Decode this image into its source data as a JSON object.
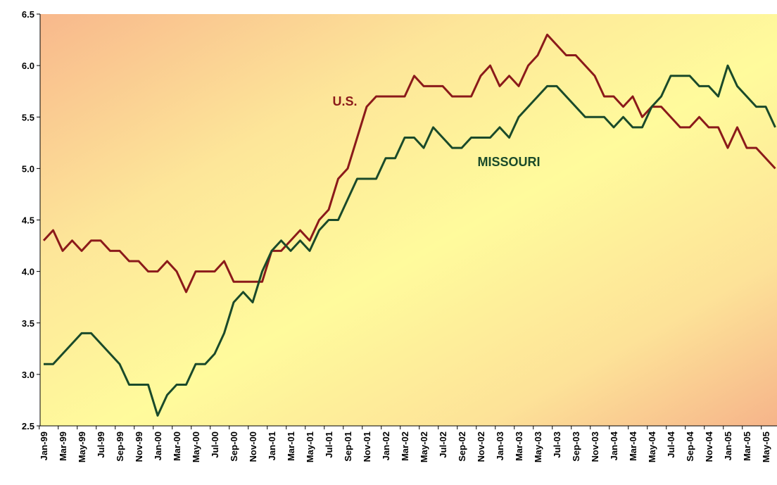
{
  "chart_data": {
    "type": "line",
    "categories": [
      "Jan-99",
      null,
      "Mar-99",
      null,
      "May-99",
      null,
      "Jul-99",
      null,
      "Sep-99",
      null,
      "Nov-99",
      null,
      "Jan-00",
      null,
      "Mar-00",
      null,
      "May-00",
      null,
      "Jul-00",
      null,
      "Sep-00",
      null,
      "Nov-00",
      null,
      "Jan-01",
      null,
      "Mar-01",
      null,
      "May-01",
      null,
      "Jul-01",
      null,
      "Sep-01",
      null,
      "Nov-01",
      null,
      "Jan-02",
      null,
      "Mar-02",
      null,
      "May-02",
      null,
      "Jul-02",
      null,
      "Sep-02",
      null,
      "Nov-02",
      null,
      "Jan-03",
      null,
      "Mar-03",
      null,
      "May-03",
      null,
      "Jul-03",
      null,
      "Sep-03",
      null,
      "Nov-03",
      null,
      "Jan-04",
      null,
      "Mar-04",
      null,
      "May-04",
      null,
      "Jul-04",
      null,
      "Sep-04",
      null,
      "Nov-04",
      null,
      "Jan-05",
      null,
      "Mar-05",
      null,
      "May-05",
      null
    ],
    "series": [
      {
        "name": "U.S.",
        "color": "#8b1a1a",
        "values": [
          4.3,
          4.4,
          4.2,
          4.3,
          4.2,
          4.3,
          4.3,
          4.2,
          4.2,
          4.1,
          4.1,
          4.0,
          4.0,
          4.1,
          4.0,
          3.8,
          4.0,
          4.0,
          4.0,
          4.1,
          3.9,
          3.9,
          3.9,
          3.9,
          4.2,
          4.2,
          4.3,
          4.4,
          4.3,
          4.5,
          4.6,
          4.9,
          5.0,
          5.3,
          5.6,
          5.7,
          5.7,
          5.7,
          5.7,
          5.9,
          5.8,
          5.8,
          5.8,
          5.7,
          5.7,
          5.7,
          5.9,
          6.0,
          5.8,
          5.9,
          5.8,
          6.0,
          6.1,
          6.3,
          6.2,
          6.1,
          6.1,
          6.0,
          5.9,
          5.7,
          5.7,
          5.6,
          5.7,
          5.5,
          5.6,
          5.6,
          5.5,
          5.4,
          5.4,
          5.5,
          5.4,
          5.4,
          5.2,
          5.4,
          5.2,
          5.2,
          5.1,
          5.0
        ]
      },
      {
        "name": "MISSOURI",
        "color": "#1a4a2a",
        "values": [
          3.1,
          3.1,
          3.2,
          3.3,
          3.4,
          3.4,
          3.3,
          3.2,
          3.1,
          2.9,
          2.9,
          2.9,
          2.6,
          2.8,
          2.9,
          2.9,
          3.1,
          3.1,
          3.2,
          3.4,
          3.7,
          3.8,
          3.7,
          4.0,
          4.2,
          4.3,
          4.2,
          4.3,
          4.2,
          4.4,
          4.5,
          4.5,
          4.7,
          4.9,
          4.9,
          4.9,
          5.1,
          5.1,
          5.3,
          5.3,
          5.2,
          5.4,
          5.3,
          5.2,
          5.2,
          5.3,
          5.3,
          5.3,
          5.4,
          5.3,
          5.5,
          5.6,
          5.7,
          5.8,
          5.8,
          5.7,
          5.6,
          5.5,
          5.5,
          5.5,
          5.4,
          5.5,
          5.4,
          5.4,
          5.6,
          5.7,
          5.9,
          5.9,
          5.9,
          5.8,
          5.8,
          5.7,
          6.0,
          5.8,
          5.7,
          5.6,
          5.6,
          5.4
        ]
      }
    ],
    "ylim": [
      2.5,
      6.5
    ],
    "yticks": [
      2.5,
      {
        "value": 3,
        "label": "3.0"
      },
      3.5,
      {
        "value": 4,
        "label": "4.0"
      },
      4.5,
      {
        "value": 5,
        "label": "5.0"
      },
      5.5,
      {
        "value": 6,
        "label": "6.0"
      },
      6.5
    ]
  }
}
